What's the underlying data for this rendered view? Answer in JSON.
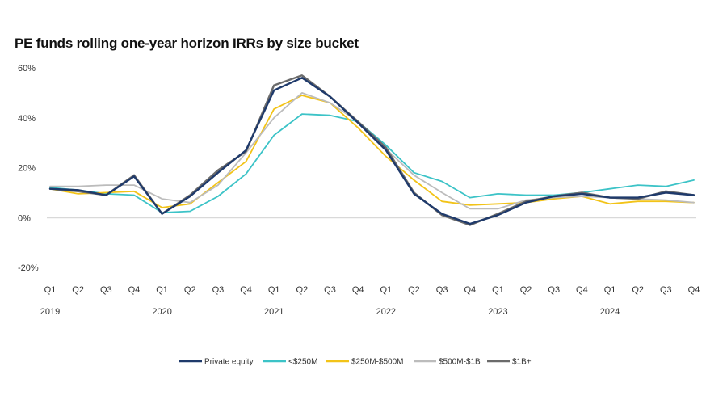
{
  "chart_data": {
    "type": "line",
    "title": "PE funds rolling one-year horizon IRRs by size bucket",
    "x": [
      "Q1",
      "Q2",
      "Q3",
      "Q4",
      "Q1",
      "Q2",
      "Q3",
      "Q4",
      "Q1",
      "Q2",
      "Q3",
      "Q4",
      "Q1",
      "Q2",
      "Q3",
      "Q4",
      "Q1",
      "Q2",
      "Q3",
      "Q4",
      "Q1",
      "Q2",
      "Q3",
      "Q4"
    ],
    "years": [
      "2019",
      "2020",
      "2021",
      "2022",
      "2023",
      "2024"
    ],
    "ylim": [
      -20,
      60
    ],
    "yticks": [
      60,
      40,
      20,
      0,
      -20
    ],
    "ytick_labels": [
      "60%",
      "40%",
      "20%",
      "0%",
      "-20%"
    ],
    "negative_tick_color": "#e8734a",
    "legend_position": "bottom",
    "grid": false,
    "series": [
      {
        "name": "Private equity",
        "color": "#1f3a6b",
        "values": [
          11.5,
          11,
          9,
          16.5,
          1.5,
          8.5,
          18,
          27,
          51,
          56,
          48.5,
          38,
          27,
          9.5,
          1.5,
          -2.5,
          1,
          6,
          8.5,
          9.5,
          8,
          8,
          10,
          9
        ]
      },
      {
        "name": "<$250M",
        "color": "#3cc3c7",
        "values": [
          12,
          11,
          9.5,
          9,
          2,
          2.5,
          8.5,
          17.5,
          33,
          41.5,
          41,
          38.5,
          29,
          18,
          14.5,
          8,
          9.5,
          9,
          9,
          10,
          11.5,
          13,
          12.5,
          15
        ]
      },
      {
        "name": "$250M-$500M",
        "color": "#f2c318",
        "values": [
          11.5,
          9.5,
          10,
          10.5,
          4,
          5.5,
          14,
          22.5,
          43.5,
          49,
          46,
          36,
          24.5,
          15,
          6.5,
          5,
          5.5,
          6,
          7.5,
          8.5,
          5.5,
          6.5,
          6.5,
          6
        ]
      },
      {
        "name": "$500M-$1B",
        "color": "#bcbcbc",
        "values": [
          12.5,
          12.5,
          13,
          13,
          7.5,
          6,
          13,
          26,
          40,
          50,
          46,
          38.5,
          27.5,
          17,
          10,
          3.5,
          3.5,
          7,
          8,
          8.5,
          8,
          7.5,
          7,
          6
        ]
      },
      {
        "name": "$1B+",
        "color": "#6b6b6b",
        "values": [
          11.5,
          10.5,
          9,
          17,
          1.5,
          9,
          19,
          26.5,
          53,
          57,
          48.5,
          38.5,
          28,
          10,
          1,
          -3,
          1.5,
          6.5,
          8.5,
          10,
          8,
          7.5,
          10.5,
          9
        ]
      }
    ]
  }
}
